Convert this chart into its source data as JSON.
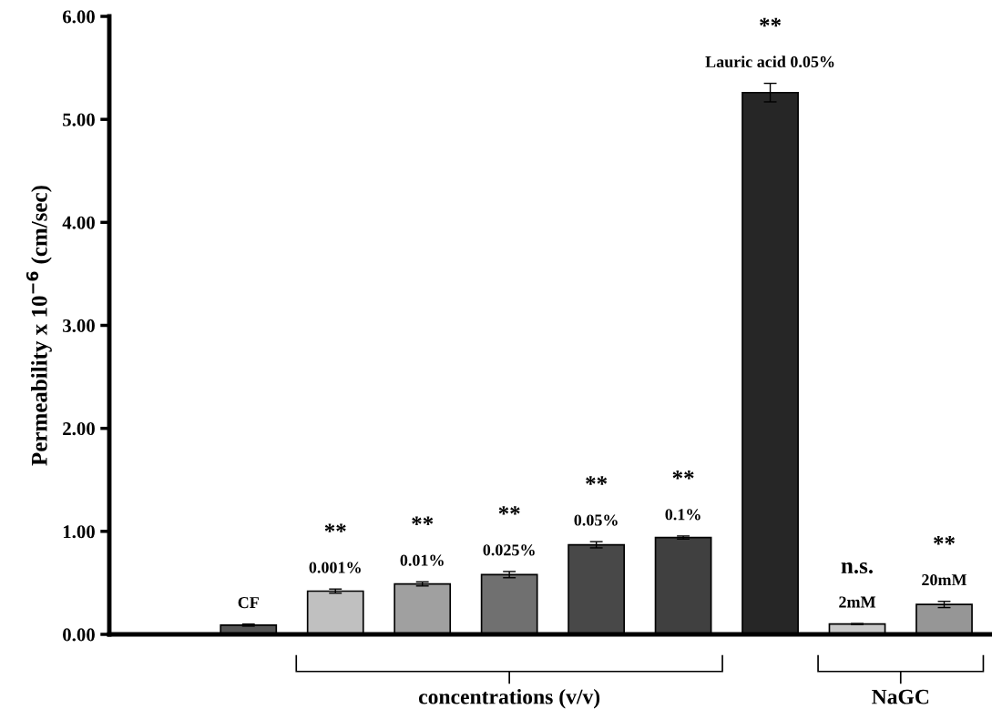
{
  "chart_data": {
    "type": "bar",
    "ylabel": "Permeability x 10$^{−6}$ (cm/sec)",
    "categories": [
      "CF",
      "0.001%",
      "0.01%",
      "0.025%",
      "0.05%",
      "0.1%",
      "Lauric acid 0.05%",
      "2mM",
      "20mM"
    ],
    "values": [
      0.09,
      0.42,
      0.49,
      0.58,
      0.87,
      0.94,
      5.26,
      0.1,
      0.29
    ],
    "errors": [
      0.01,
      0.02,
      0.02,
      0.03,
      0.03,
      0.015,
      0.09,
      0.005,
      0.03
    ],
    "colors": [
      "#555555",
      "#c0c0c0",
      "#a0a0a0",
      "#707070",
      "#484848",
      "#404040",
      "#262626",
      "#c8c8c8",
      "#969696"
    ],
    "ylim": [
      0,
      6
    ],
    "yticks": [
      {
        "value": 0,
        "label": "0.00"
      },
      {
        "value": 1,
        "label": "1.00"
      },
      {
        "value": 2,
        "label": "2.00"
      },
      {
        "value": 3,
        "label": "3.00"
      },
      {
        "value": 4,
        "label": "4.00"
      },
      {
        "value": 5,
        "label": "5.00"
      },
      {
        "value": 6,
        "label": "6.00"
      }
    ],
    "grid": false,
    "legend": false,
    "annotations": [
      "concentrations (v/v)",
      "NaGC",
      "**",
      "**",
      "**",
      "**",
      "**",
      "**",
      "n.s.",
      "**"
    ]
  }
}
